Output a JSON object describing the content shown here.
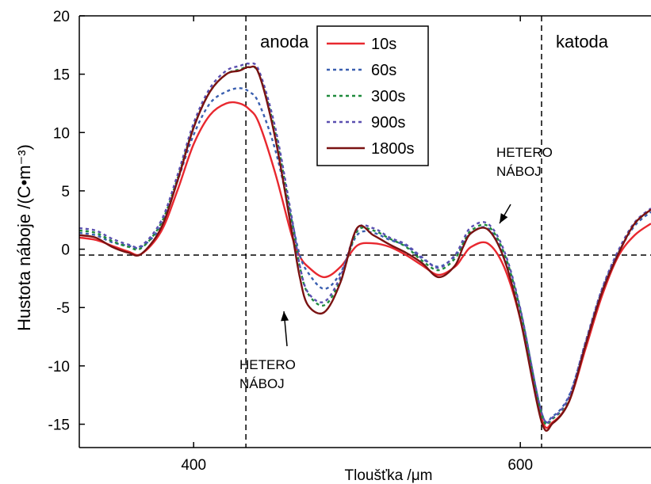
{
  "chart_data": {
    "type": "line",
    "title": "",
    "xlabel": "Tloušťka /μm",
    "ylabel": "Hustota náboje /(C•m⁻³)",
    "xlim": [
      330,
      680
    ],
    "ylim": [
      -17,
      20
    ],
    "x_ticks": [
      400,
      600
    ],
    "y_ticks": [
      20,
      15,
      10,
      5,
      0,
      -5,
      -10,
      -15
    ],
    "grid": false,
    "legend_position": "top-center",
    "reference_lines": {
      "vertical_x": [
        432,
        613
      ],
      "horizontal_y": [
        -0.5
      ]
    },
    "regions": [
      {
        "label": "anoda",
        "x": 432
      },
      {
        "label": "katoda",
        "x": 613
      }
    ],
    "annotations": [
      {
        "lines": [
          "HETERO",
          "NÁBOJ"
        ],
        "target_x": 465,
        "target_y": -5.4
      },
      {
        "lines": [
          "HETERO",
          "NÁBOJ"
        ],
        "target_x": 565,
        "target_y": 2.2
      }
    ],
    "x": [
      330,
      340,
      350,
      360,
      368,
      380,
      390,
      400,
      410,
      420,
      428,
      434,
      440,
      450,
      460,
      465,
      470,
      480,
      490,
      500,
      510,
      520,
      530,
      540,
      550,
      560,
      565,
      570,
      580,
      590,
      600,
      613,
      620,
      630,
      640,
      650,
      660,
      670,
      680
    ],
    "series": [
      {
        "name": "10s",
        "color": "#e8282f",
        "dash": "solid",
        "values": [
          1.0,
          0.8,
          0.3,
          -0.2,
          -0.4,
          1.5,
          5.0,
          9.0,
          11.5,
          12.5,
          12.5,
          12.0,
          10.8,
          6.5,
          1.2,
          -0.6,
          -1.5,
          -2.4,
          -1.5,
          0.3,
          0.5,
          0.2,
          -0.5,
          -1.4,
          -2.2,
          -1.5,
          -0.6,
          0.2,
          0.5,
          -1.5,
          -6.0,
          -14.5,
          -14.8,
          -13.0,
          -8.5,
          -4.0,
          -0.6,
          1.2,
          2.2
        ]
      },
      {
        "name": "60s",
        "color": "#3a5fb0",
        "dash": "4,4",
        "values": [
          1.4,
          1.2,
          0.6,
          0.3,
          0.2,
          2.0,
          5.8,
          9.8,
          12.5,
          13.5,
          13.8,
          13.5,
          12.5,
          8.5,
          2.5,
          -0.5,
          -2.0,
          -3.4,
          -2.0,
          1.2,
          1.4,
          0.8,
          0.3,
          -0.8,
          -1.5,
          -0.6,
          0.5,
          1.4,
          1.8,
          -0.5,
          -5.2,
          -14.0,
          -14.3,
          -12.5,
          -8.0,
          -3.5,
          -0.3,
          2.0,
          3.2
        ]
      },
      {
        "name": "300s",
        "color": "#1e8a3c",
        "dash": "4,4",
        "values": [
          1.6,
          1.4,
          0.7,
          0.2,
          0.1,
          2.2,
          6.0,
          10.5,
          13.5,
          15.0,
          15.4,
          15.6,
          15.0,
          10.0,
          2.5,
          -1.5,
          -3.8,
          -4.8,
          -2.6,
          1.5,
          1.6,
          0.9,
          0.2,
          -1.0,
          -1.8,
          -0.8,
          0.5,
          1.6,
          2.0,
          -0.3,
          -5.3,
          -14.2,
          -14.5,
          -12.7,
          -8.0,
          -3.5,
          -0.2,
          2.2,
          3.4
        ]
      },
      {
        "name": "900s",
        "color": "#5a4fb0",
        "dash": "4,4",
        "values": [
          1.8,
          1.6,
          0.9,
          0.4,
          0.3,
          2.4,
          6.3,
          10.8,
          13.8,
          15.3,
          15.7,
          15.9,
          15.3,
          10.4,
          2.8,
          -1.4,
          -3.7,
          -4.5,
          -2.3,
          1.7,
          1.8,
          1.0,
          0.4,
          -0.7,
          -1.6,
          -0.5,
          0.8,
          1.9,
          2.2,
          -0.1,
          -5.1,
          -14.0,
          -14.4,
          -12.6,
          -7.9,
          -3.4,
          -0.1,
          2.3,
          3.5
        ]
      },
      {
        "name": "1800s",
        "color": "#7a1212",
        "dash": "solid",
        "values": [
          1.2,
          1.0,
          0.2,
          -0.3,
          -0.4,
          1.8,
          5.8,
          10.4,
          13.5,
          15.0,
          15.3,
          15.6,
          15.0,
          9.5,
          1.6,
          -2.4,
          -4.8,
          -5.4,
          -2.8,
          1.8,
          1.2,
          0.4,
          -0.3,
          -1.2,
          -2.4,
          -1.4,
          0.2,
          1.4,
          1.7,
          -0.8,
          -6.0,
          -14.8,
          -14.9,
          -13.0,
          -8.2,
          -3.7,
          -0.4,
          2.2,
          3.4
        ]
      }
    ]
  }
}
